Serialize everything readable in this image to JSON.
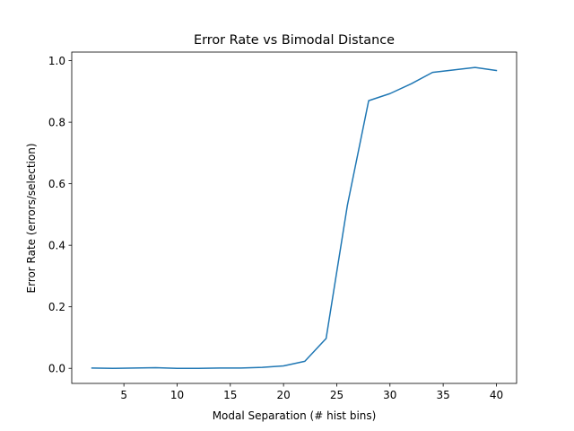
{
  "chart_data": {
    "type": "line",
    "title": "Error Rate vs Bimodal Distance",
    "xlabel": "Modal Separation (# hist bins)",
    "ylabel": "Error Rate (errors/selection)",
    "xlim": [
      0.1,
      41.9
    ],
    "ylim": [
      -0.049,
      1.028
    ],
    "xticks": [
      5,
      10,
      15,
      20,
      25,
      30,
      35,
      40
    ],
    "xtick_labels": [
      "5",
      "10",
      "15",
      "20",
      "25",
      "30",
      "35",
      "40"
    ],
    "yticks": [
      0.0,
      0.2,
      0.4,
      0.6,
      0.8,
      1.0
    ],
    "ytick_labels": [
      "0.0",
      "0.2",
      "0.4",
      "0.6",
      "0.8",
      "1.0"
    ],
    "grid": false,
    "series": [
      {
        "color": "#1f77b4",
        "x": [
          2,
          4,
          6,
          8,
          10,
          12,
          14,
          16,
          18,
          20,
          22,
          24,
          26,
          28,
          30,
          32,
          34,
          36,
          38,
          40
        ],
        "y": [
          0.001,
          0.0,
          0.001,
          0.002,
          0.0,
          0.0,
          0.001,
          0.001,
          0.003,
          0.008,
          0.023,
          0.097,
          0.53,
          0.87,
          0.893,
          0.925,
          0.962,
          0.97,
          0.978,
          0.968
        ]
      }
    ]
  }
}
